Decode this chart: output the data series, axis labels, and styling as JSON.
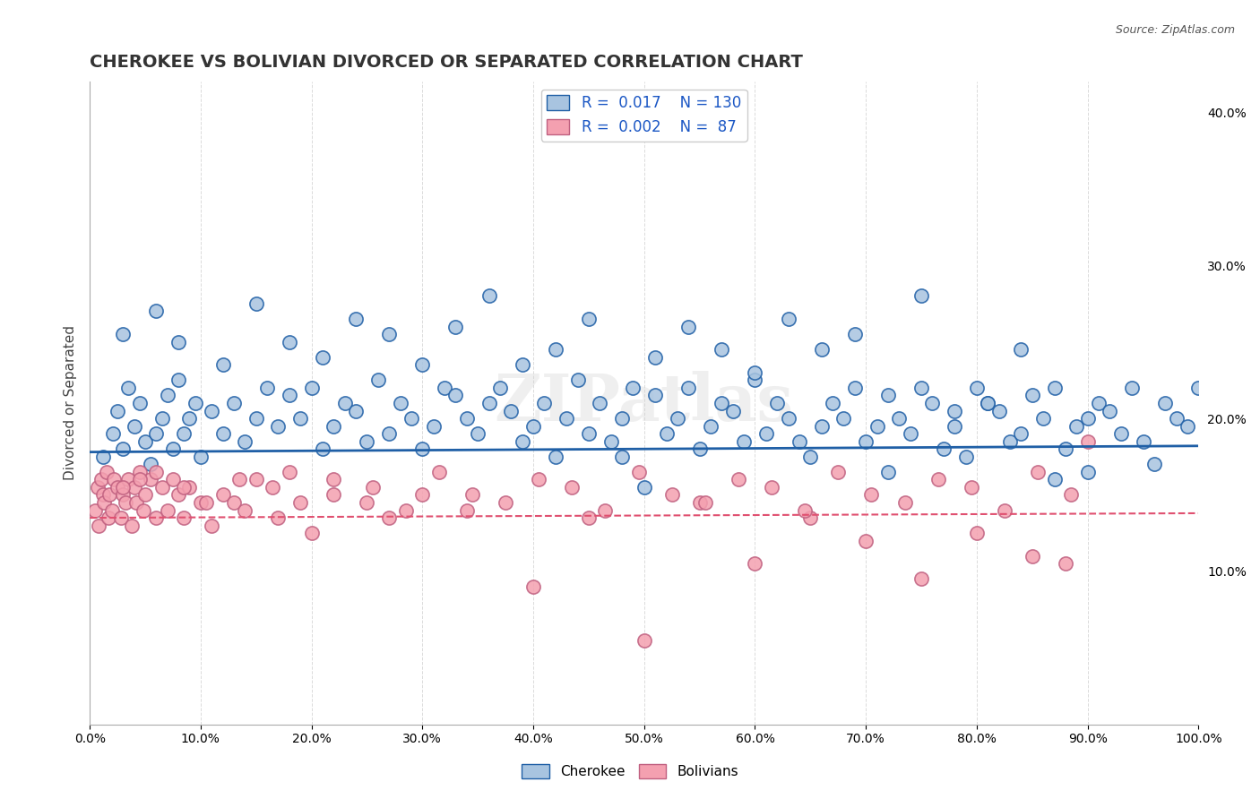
{
  "title": "CHEROKEE VS BOLIVIAN DIVORCED OR SEPARATED CORRELATION CHART",
  "source_text": "Source: ZipAtlas.com",
  "ylabel": "Divorced or Separated",
  "xlabel": "",
  "watermark": "ZIPatlas",
  "cherokee_R": 0.017,
  "cherokee_N": 130,
  "bolivian_R": 0.002,
  "bolivian_N": 87,
  "cherokee_color": "#a8c4e0",
  "bolivian_color": "#f4a0b0",
  "cherokee_line_color": "#1f5fa6",
  "bolivian_line_color": "#e05070",
  "background_color": "#ffffff",
  "grid_color": "#cccccc",
  "title_color": "#333333",
  "cherokee_x": [
    1.2,
    2.1,
    2.5,
    3.0,
    3.5,
    4.0,
    4.5,
    5.0,
    5.5,
    6.0,
    6.5,
    7.0,
    7.5,
    8.0,
    8.5,
    9.0,
    9.5,
    10.0,
    11.0,
    12.0,
    13.0,
    14.0,
    15.0,
    16.0,
    17.0,
    18.0,
    19.0,
    20.0,
    21.0,
    22.0,
    23.0,
    24.0,
    25.0,
    26.0,
    27.0,
    28.0,
    29.0,
    30.0,
    31.0,
    32.0,
    33.0,
    34.0,
    35.0,
    36.0,
    37.0,
    38.0,
    39.0,
    40.0,
    41.0,
    42.0,
    43.0,
    44.0,
    45.0,
    46.0,
    47.0,
    48.0,
    49.0,
    50.0,
    51.0,
    52.0,
    53.0,
    54.0,
    55.0,
    56.0,
    57.0,
    58.0,
    59.0,
    60.0,
    61.0,
    62.0,
    63.0,
    64.0,
    65.0,
    66.0,
    67.0,
    68.0,
    69.0,
    70.0,
    71.0,
    72.0,
    73.0,
    74.0,
    75.0,
    76.0,
    77.0,
    78.0,
    79.0,
    80.0,
    81.0,
    82.0,
    83.0,
    84.0,
    85.0,
    86.0,
    87.0,
    88.0,
    89.0,
    90.0,
    91.0,
    92.0,
    93.0,
    94.0,
    95.0,
    96.0,
    97.0,
    98.0,
    99.0,
    100.0,
    3.0,
    6.0,
    8.0,
    12.0,
    15.0,
    18.0,
    21.0,
    24.0,
    27.0,
    30.0,
    33.0,
    36.0,
    39.0,
    42.0,
    45.0,
    48.0,
    51.0,
    54.0,
    57.0,
    60.0,
    63.0,
    66.0,
    69.0,
    72.0,
    75.0,
    78.0,
    81.0,
    84.0,
    87.0,
    90.0
  ],
  "cherokee_y": [
    17.5,
    19.0,
    20.5,
    18.0,
    22.0,
    19.5,
    21.0,
    18.5,
    17.0,
    19.0,
    20.0,
    21.5,
    18.0,
    22.5,
    19.0,
    20.0,
    21.0,
    17.5,
    20.5,
    19.0,
    21.0,
    18.5,
    20.0,
    22.0,
    19.5,
    21.5,
    20.0,
    22.0,
    18.0,
    19.5,
    21.0,
    20.5,
    18.5,
    22.5,
    19.0,
    21.0,
    20.0,
    18.0,
    19.5,
    22.0,
    21.5,
    20.0,
    19.0,
    21.0,
    22.0,
    20.5,
    18.5,
    19.5,
    21.0,
    17.5,
    20.0,
    22.5,
    19.0,
    21.0,
    18.5,
    20.0,
    22.0,
    15.5,
    21.5,
    19.0,
    20.0,
    22.0,
    18.0,
    19.5,
    21.0,
    20.5,
    18.5,
    22.5,
    19.0,
    21.0,
    20.0,
    18.5,
    17.5,
    19.5,
    21.0,
    20.0,
    22.0,
    18.5,
    19.5,
    21.5,
    20.0,
    19.0,
    22.0,
    21.0,
    18.0,
    19.5,
    17.5,
    22.0,
    21.0,
    20.5,
    18.5,
    19.0,
    21.5,
    20.0,
    22.0,
    18.0,
    19.5,
    16.5,
    21.0,
    20.5,
    19.0,
    22.0,
    18.5,
    17.0,
    21.0,
    20.0,
    19.5,
    22.0,
    25.5,
    27.0,
    25.0,
    23.5,
    27.5,
    25.0,
    24.0,
    26.5,
    25.5,
    23.5,
    26.0,
    28.0,
    23.5,
    24.5,
    26.5,
    17.5,
    24.0,
    26.0,
    24.5,
    23.0,
    26.5,
    24.5,
    25.5,
    16.5,
    28.0,
    20.5,
    21.0,
    24.5,
    16.0,
    20.0
  ],
  "bolivian_x": [
    0.5,
    0.7,
    0.8,
    1.0,
    1.2,
    1.3,
    1.5,
    1.7,
    1.8,
    2.0,
    2.2,
    2.5,
    2.8,
    3.0,
    3.2,
    3.5,
    3.8,
    4.0,
    4.2,
    4.5,
    4.8,
    5.0,
    5.5,
    6.0,
    6.5,
    7.0,
    7.5,
    8.0,
    8.5,
    9.0,
    10.0,
    11.0,
    12.0,
    13.0,
    14.0,
    15.0,
    17.0,
    18.0,
    20.0,
    22.0,
    25.0,
    27.0,
    30.0,
    34.0,
    40.0,
    45.0,
    50.0,
    55.0,
    60.0,
    65.0,
    70.0,
    75.0,
    80.0,
    85.0,
    88.0,
    90.0,
    3.0,
    4.5,
    6.0,
    8.5,
    10.5,
    13.5,
    16.5,
    19.0,
    22.0,
    25.5,
    28.5,
    31.5,
    34.5,
    37.5,
    40.5,
    43.5,
    46.5,
    49.5,
    52.5,
    55.5,
    58.5,
    61.5,
    64.5,
    67.5,
    70.5,
    73.5,
    76.5,
    79.5,
    82.5,
    85.5,
    88.5
  ],
  "bolivian_y": [
    14.0,
    15.5,
    13.0,
    16.0,
    15.0,
    14.5,
    16.5,
    13.5,
    15.0,
    14.0,
    16.0,
    15.5,
    13.5,
    15.0,
    14.5,
    16.0,
    13.0,
    15.5,
    14.5,
    16.5,
    14.0,
    15.0,
    16.0,
    13.5,
    15.5,
    14.0,
    16.0,
    15.0,
    13.5,
    15.5,
    14.5,
    13.0,
    15.0,
    14.5,
    14.0,
    16.0,
    13.5,
    16.5,
    12.5,
    15.0,
    14.5,
    13.5,
    15.0,
    14.0,
    9.0,
    13.5,
    5.5,
    14.5,
    10.5,
    13.5,
    12.0,
    9.5,
    12.5,
    11.0,
    10.5,
    18.5,
    15.5,
    16.0,
    16.5,
    15.5,
    14.5,
    16.0,
    15.5,
    14.5,
    16.0,
    15.5,
    14.0,
    16.5,
    15.0,
    14.5,
    16.0,
    15.5,
    14.0,
    16.5,
    15.0,
    14.5,
    16.0,
    15.5,
    14.0,
    16.5,
    15.0,
    14.5,
    16.0,
    15.5,
    14.0,
    16.5,
    15.0
  ],
  "xlim": [
    0,
    100
  ],
  "ylim": [
    0,
    42
  ],
  "xticks": [
    0,
    10,
    20,
    30,
    40,
    50,
    60,
    70,
    80,
    90,
    100
  ],
  "xticklabels": [
    "0.0%",
    "10.0%",
    "20.0%",
    "30.0%",
    "40.0%",
    "50.0%",
    "60.0%",
    "70.0%",
    "80.0%",
    "90.0%",
    "100.0%"
  ],
  "yticks_right": [
    0,
    10,
    20,
    30,
    40
  ],
  "yticklabels_right": [
    "",
    "10.0%",
    "20.0%",
    "30.0%",
    "40.0%"
  ],
  "cherokee_line_intercept": 17.8,
  "cherokee_line_slope": 0.004,
  "bolivian_line_intercept": 13.5,
  "bolivian_line_slope": 0.003
}
